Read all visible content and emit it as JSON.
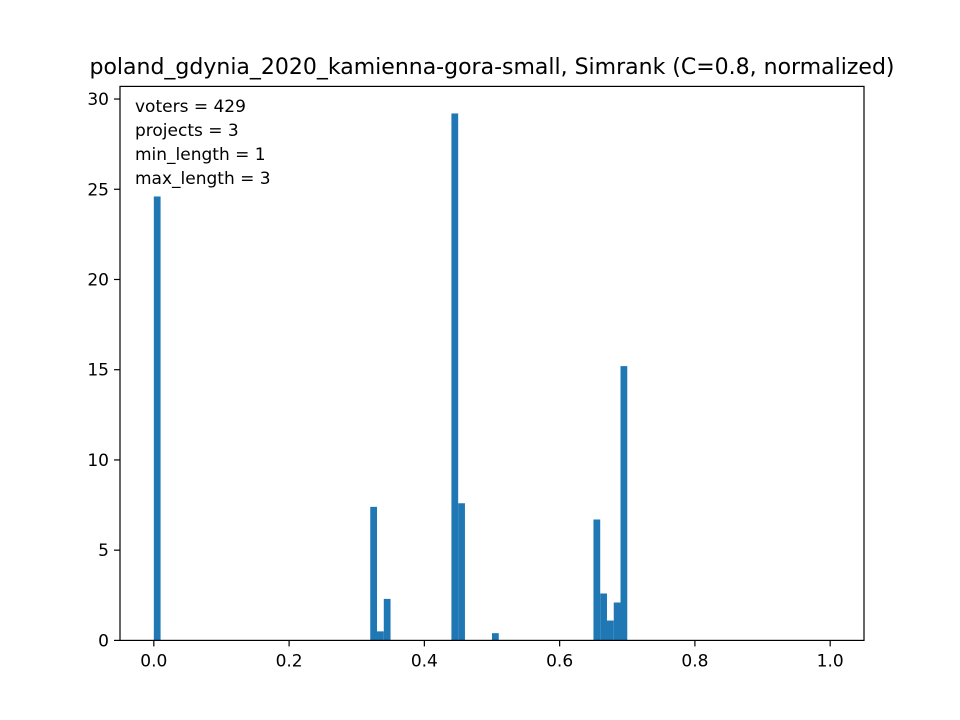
{
  "chart_data": {
    "type": "bar",
    "title": "poland_gdynia_2020_kamienna-gora-small, Simrank (C=0.8, normalized)",
    "xlabel": "",
    "ylabel": "",
    "xlim": [
      -0.05,
      1.05
    ],
    "ylim": [
      0,
      30.7
    ],
    "bin_width": 0.01,
    "color": "#1f77b4",
    "grid": false,
    "x_ticks": [
      {
        "value": 0.0,
        "label": "0.0"
      },
      {
        "value": 0.2,
        "label": "0.2"
      },
      {
        "value": 0.4,
        "label": "0.4"
      },
      {
        "value": 0.6,
        "label": "0.6"
      },
      {
        "value": 0.8,
        "label": "0.8"
      },
      {
        "value": 1.0,
        "label": "1.0"
      }
    ],
    "y_ticks": [
      {
        "value": 0,
        "label": "0"
      },
      {
        "value": 5,
        "label": "5"
      },
      {
        "value": 10,
        "label": "10"
      },
      {
        "value": 15,
        "label": "15"
      },
      {
        "value": 20,
        "label": "20"
      },
      {
        "value": 25,
        "label": "25"
      },
      {
        "value": 30,
        "label": "30"
      }
    ],
    "annotation_lines": [
      "voters = 429",
      "projects = 3",
      "min_length = 1",
      "max_length = 3"
    ],
    "bins": [
      {
        "x0": 0.0,
        "x1": 0.01,
        "value": 24.6
      },
      {
        "x0": 0.32,
        "x1": 0.33,
        "value": 7.4
      },
      {
        "x0": 0.33,
        "x1": 0.34,
        "value": 0.5
      },
      {
        "x0": 0.34,
        "x1": 0.35,
        "value": 2.3
      },
      {
        "x0": 0.44,
        "x1": 0.45,
        "value": 29.2
      },
      {
        "x0": 0.45,
        "x1": 0.46,
        "value": 7.6
      },
      {
        "x0": 0.5,
        "x1": 0.51,
        "value": 0.4
      },
      {
        "x0": 0.65,
        "x1": 0.66,
        "value": 6.7
      },
      {
        "x0": 0.66,
        "x1": 0.67,
        "value": 2.6
      },
      {
        "x0": 0.67,
        "x1": 0.68,
        "value": 1.1
      },
      {
        "x0": 0.68,
        "x1": 0.69,
        "value": 2.1
      },
      {
        "x0": 0.69,
        "x1": 0.7,
        "value": 15.2
      }
    ]
  }
}
